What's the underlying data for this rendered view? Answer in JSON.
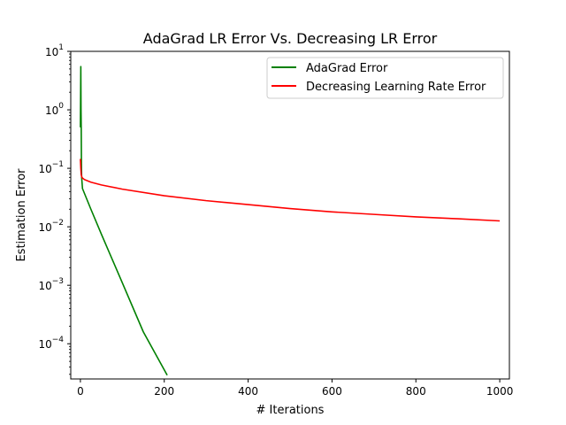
{
  "chart_data": {
    "type": "line",
    "title": "AdaGrad LR Error Vs. Decreasing LR Error",
    "xlabel": "# Iterations",
    "ylabel": "Estimation Error",
    "xlim": [
      -23,
      1023
    ],
    "ylim": [
      2.5e-05,
      10
    ],
    "yscale": "log",
    "grid": false,
    "legend_position": "top-right",
    "x_ticks": [
      0,
      200,
      400,
      600,
      800,
      1000
    ],
    "x_tick_labels": [
      "0",
      "200",
      "400",
      "600",
      "800",
      "1000"
    ],
    "y_ticks": [
      0.0001,
      0.001,
      0.01,
      0.1,
      1,
      10
    ],
    "y_tick_labels": [
      {
        "base": "10",
        "exp": "−4"
      },
      {
        "base": "10",
        "exp": "−3"
      },
      {
        "base": "10",
        "exp": "−2"
      },
      {
        "base": "10",
        "exp": "−1"
      },
      {
        "base": "10",
        "exp": "0"
      },
      {
        "base": "10",
        "exp": "1"
      }
    ],
    "series": [
      {
        "name": "AdaGrad Error",
        "color": "#008000",
        "x": [
          0,
          1,
          1.5,
          2,
          2.5,
          3,
          5,
          25,
          50,
          100,
          150,
          207
        ],
        "y": [
          0.5,
          5.5,
          1.0,
          0.5,
          0.12,
          0.07,
          0.045,
          0.02,
          0.0075,
          0.0011,
          0.00016,
          2.9e-05
        ]
      },
      {
        "name": "Decreasing Learning Rate Error",
        "color": "#ff0000",
        "x": [
          0,
          1,
          2,
          3,
          5,
          10,
          25,
          50,
          100,
          200,
          300,
          400,
          500,
          600,
          700,
          800,
          900,
          1000
        ],
        "y": [
          0.145,
          0.1,
          0.078,
          0.072,
          0.068,
          0.064,
          0.058,
          0.052,
          0.044,
          0.034,
          0.028,
          0.024,
          0.0205,
          0.018,
          0.0163,
          0.0148,
          0.0137,
          0.0126
        ]
      }
    ]
  }
}
